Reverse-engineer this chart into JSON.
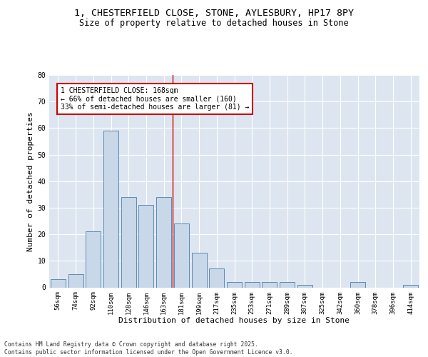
{
  "title_line1": "1, CHESTERFIELD CLOSE, STONE, AYLESBURY, HP17 8PY",
  "title_line2": "Size of property relative to detached houses in Stone",
  "xlabel": "Distribution of detached houses by size in Stone",
  "ylabel": "Number of detached properties",
  "categories": [
    "56sqm",
    "74sqm",
    "92sqm",
    "110sqm",
    "128sqm",
    "146sqm",
    "163sqm",
    "181sqm",
    "199sqm",
    "217sqm",
    "235sqm",
    "253sqm",
    "271sqm",
    "289sqm",
    "307sqm",
    "325sqm",
    "342sqm",
    "360sqm",
    "378sqm",
    "396sqm",
    "414sqm"
  ],
  "values": [
    3,
    5,
    21,
    59,
    34,
    31,
    34,
    24,
    13,
    7,
    2,
    2,
    2,
    2,
    1,
    0,
    0,
    2,
    0,
    0,
    1
  ],
  "bar_color": "#c8d8e8",
  "bar_edge_color": "#5b8ab5",
  "vline_x": 6.5,
  "vline_color": "#cc0000",
  "annotation_text": "1 CHESTERFIELD CLOSE: 168sqm\n← 66% of detached houses are smaller (160)\n33% of semi-detached houses are larger (81) →",
  "annotation_box_color": "#ffffff",
  "annotation_box_edge": "#cc0000",
  "ylim": [
    0,
    80
  ],
  "yticks": [
    0,
    10,
    20,
    30,
    40,
    50,
    60,
    70,
    80
  ],
  "background_color": "#dde6f0",
  "footer_text": "Contains HM Land Registry data © Crown copyright and database right 2025.\nContains public sector information licensed under the Open Government Licence v3.0.",
  "grid_color": "#ffffff",
  "title_fontsize": 9.5,
  "subtitle_fontsize": 8.5,
  "tick_fontsize": 6.5,
  "xlabel_fontsize": 8,
  "ylabel_fontsize": 8,
  "annotation_fontsize": 7,
  "footer_fontsize": 5.8
}
